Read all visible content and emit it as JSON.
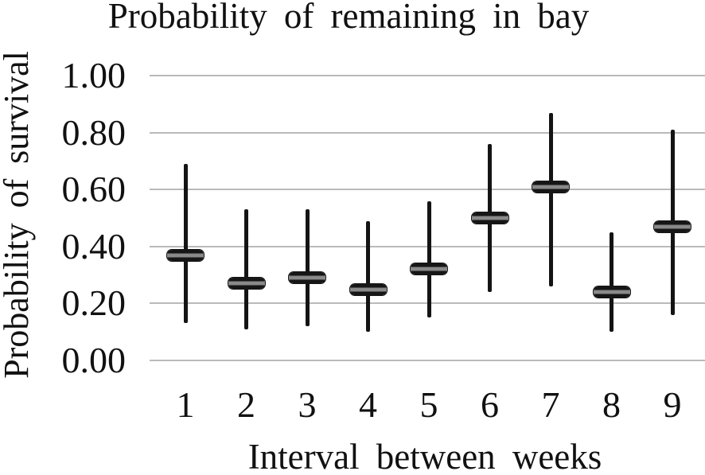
{
  "figure": {
    "title": "Probability of remaining in bay",
    "background": "#ffffff"
  },
  "chart_data": {
    "type": "scatter",
    "subtype": "point-estimates-with-error-bars",
    "title": "Probability of remaining in bay",
    "xlabel": "Interval between weeks",
    "ylabel": "Probability of survival",
    "x": [
      1,
      2,
      3,
      4,
      5,
      6,
      7,
      8,
      9
    ],
    "series": [
      {
        "name": "Probability of survival",
        "values": [
          0.37,
          0.27,
          0.29,
          0.25,
          0.32,
          0.5,
          0.61,
          0.24,
          0.47
        ],
        "error_low": [
          0.13,
          0.11,
          0.12,
          0.1,
          0.15,
          0.24,
          0.26,
          0.1,
          0.16
        ],
        "error_high": [
          0.69,
          0.53,
          0.53,
          0.49,
          0.56,
          0.76,
          0.87,
          0.45,
          0.81
        ]
      }
    ],
    "ylim": [
      0.0,
      1.0
    ],
    "ytick_step": 0.2,
    "ytick_labels": [
      "0.00",
      "0.20",
      "0.40",
      "0.60",
      "0.80",
      "1.00"
    ],
    "xtick_labels": [
      "1",
      "2",
      "3",
      "4",
      "5",
      "6",
      "7",
      "8",
      "9"
    ],
    "grid": "horizontal",
    "legend": "none"
  },
  "style": {
    "grid_color": "#bababa",
    "whisker_color": "#141414",
    "marker_fill": "#161616",
    "marker_core": "#8a8a8a",
    "text_color": "#111111"
  }
}
